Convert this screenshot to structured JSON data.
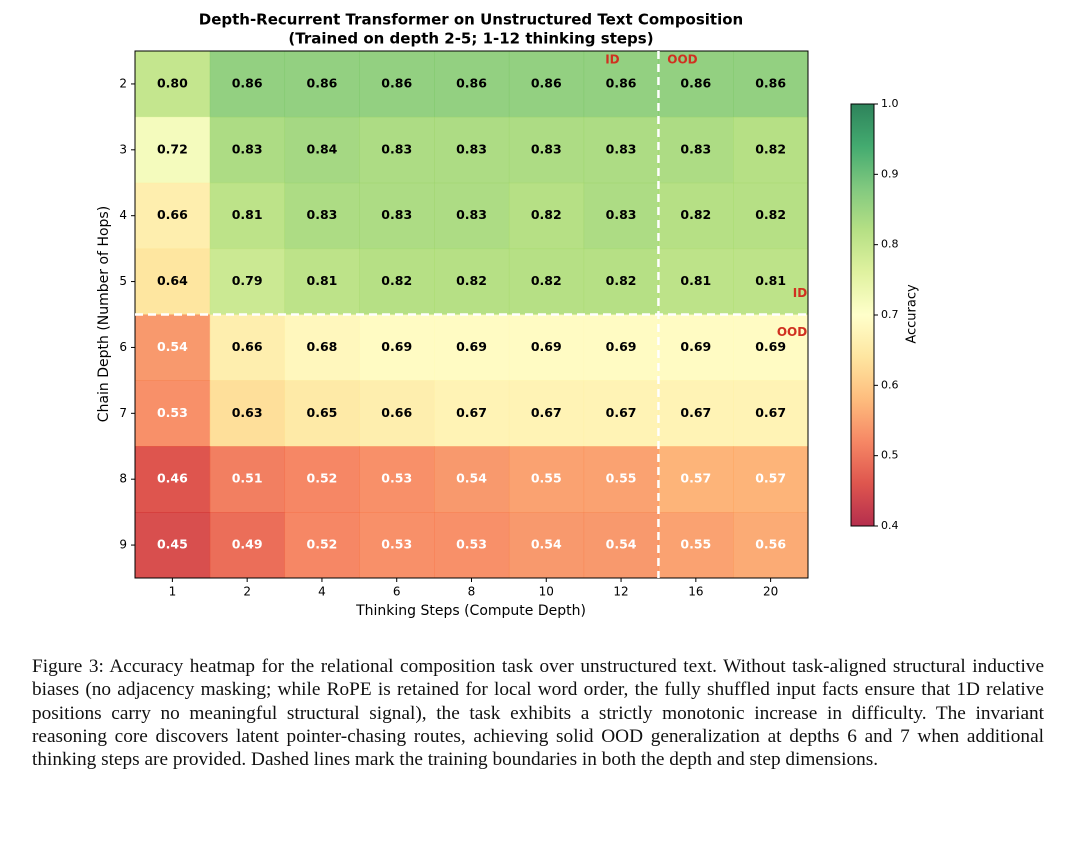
{
  "chart_data": {
    "type": "heatmap",
    "title": "Depth-Recurrent Transformer on Unstructured Text Composition",
    "subtitle": "(Trained on depth 2-5; 1-12 thinking steps)",
    "x_label": "Thinking Steps (Compute Depth)",
    "y_label": "Chain Depth (Number of Hops)",
    "x": [
      1,
      2,
      4,
      6,
      8,
      10,
      12,
      16,
      20
    ],
    "y": [
      2,
      3,
      4,
      5,
      6,
      7,
      8,
      9
    ],
    "colormap": "RdYlGn",
    "values": [
      [
        0.8,
        0.86,
        0.86,
        0.86,
        0.86,
        0.86,
        0.86,
        0.86,
        0.86
      ],
      [
        0.72,
        0.83,
        0.84,
        0.83,
        0.83,
        0.83,
        0.83,
        0.83,
        0.82
      ],
      [
        0.66,
        0.81,
        0.83,
        0.83,
        0.83,
        0.82,
        0.83,
        0.82,
        0.82
      ],
      [
        0.64,
        0.79,
        0.81,
        0.82,
        0.82,
        0.82,
        0.82,
        0.81,
        0.81
      ],
      [
        0.54,
        0.66,
        0.68,
        0.69,
        0.69,
        0.69,
        0.69,
        0.69,
        0.69
      ],
      [
        0.53,
        0.63,
        0.65,
        0.66,
        0.67,
        0.67,
        0.67,
        0.67,
        0.67
      ],
      [
        0.46,
        0.51,
        0.52,
        0.53,
        0.54,
        0.55,
        0.55,
        0.57,
        0.57
      ],
      [
        0.45,
        0.49,
        0.52,
        0.53,
        0.53,
        0.54,
        0.54,
        0.55,
        0.56
      ]
    ],
    "value_labels": [
      [
        "0.80",
        "0.86",
        "0.86",
        "0.86",
        "0.86",
        "0.86",
        "0.86",
        "0.86",
        "0.86"
      ],
      [
        "0.72",
        "0.83",
        "0.84",
        "0.83",
        "0.83",
        "0.83",
        "0.83",
        "0.83",
        "0.82"
      ],
      [
        "0.66",
        "0.81",
        "0.83",
        "0.83",
        "0.83",
        "0.82",
        "0.83",
        "0.82",
        "0.82"
      ],
      [
        "0.64",
        "0.79",
        "0.81",
        "0.82",
        "0.82",
        "0.82",
        "0.82",
        "0.81",
        "0.81"
      ],
      [
        "0.54",
        "0.66",
        "0.68",
        "0.69",
        "0.69",
        "0.69",
        "0.69",
        "0.69",
        "0.69"
      ],
      [
        "0.53",
        "0.63",
        "0.65",
        "0.66",
        "0.67",
        "0.67",
        "0.67",
        "0.67",
        "0.67"
      ],
      [
        "0.46",
        "0.51",
        "0.52",
        "0.53",
        "0.54",
        "0.55",
        "0.55",
        "0.57",
        "0.57"
      ],
      [
        "0.45",
        "0.49",
        "0.52",
        "0.53",
        "0.53",
        "0.54",
        "0.54",
        "0.55",
        "0.56"
      ]
    ],
    "colorbar": {
      "label": "Accuracy",
      "lim": [
        0.4,
        1.0
      ],
      "ticks": [
        0.4,
        0.5,
        0.6,
        0.7,
        0.8,
        0.9,
        {
          "value": 1.0,
          "label": "1.0"
        }
      ]
    },
    "annotations": [
      "ID",
      "OOD",
      "ID",
      "OOD"
    ]
  },
  "caption": "Figure 3: Accuracy heatmap for the relational composition task over unstructured text. Without task-aligned structural inductive biases (no adjacency masking; while RoPE is retained for local word order, the fully shuffled input facts ensure that 1D relative positions carry no meaningful structural signal), the task exhibits a strictly monotonic increase in difficulty. The invariant reasoning core discovers latent pointer-chasing routes, achieving solid OOD generalization at depths 6 and 7 when additional thinking steps are provided. Dashed lines mark the training boundaries in both the depth and step dimensions."
}
